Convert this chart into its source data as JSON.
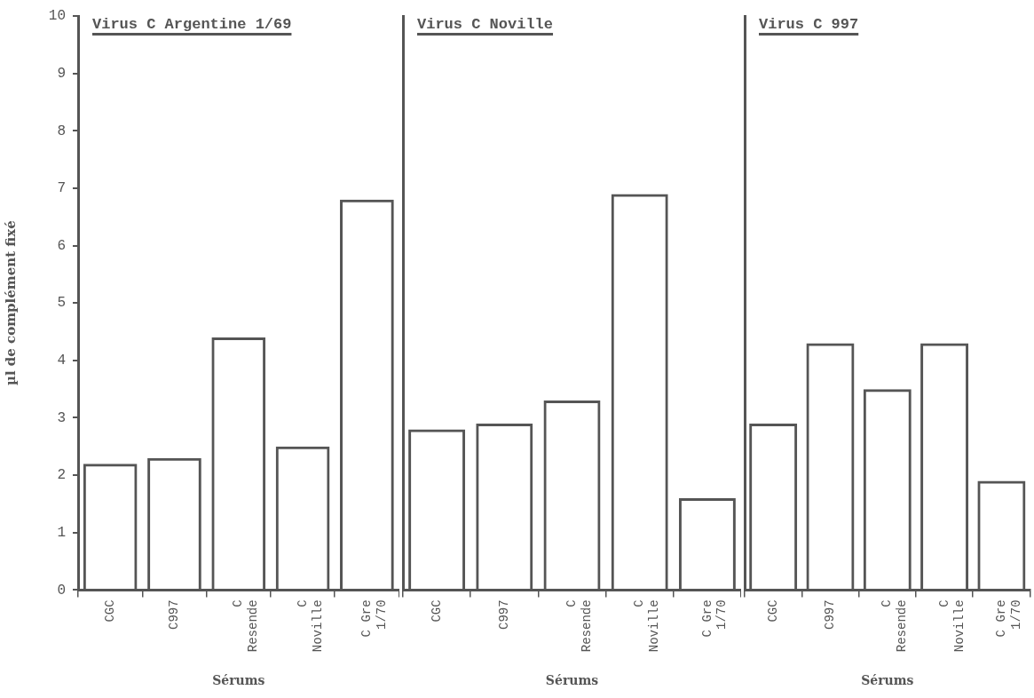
{
  "chart_data": [
    {
      "type": "bar",
      "title": "Virus C Argentine 1/69",
      "xlabel": "Sérums",
      "ylabel": "µl de complément fixé",
      "categories": [
        "CGC",
        "C997",
        "C\nResende",
        "C\nNoville",
        "C Gre\n1/70"
      ],
      "values": [
        2.2,
        2.3,
        4.4,
        2.5,
        6.8
      ],
      "color": "#555555",
      "ylim": [
        0,
        10
      ],
      "yticks": [
        0,
        1,
        2,
        3,
        4,
        5,
        6,
        7,
        8,
        9,
        10
      ]
    },
    {
      "type": "bar",
      "title": "Virus C Noville",
      "xlabel": "Sérums",
      "categories": [
        "CGC",
        "C997",
        "C\nResende",
        "C\nNoville",
        "C Gre\n1/70"
      ],
      "values": [
        2.8,
        2.9,
        3.3,
        6.9,
        1.6
      ],
      "color": "#555555",
      "ylim": [
        0,
        10
      ],
      "yticks": [
        0,
        1,
        2,
        3,
        4,
        5,
        6,
        7,
        8,
        9,
        10
      ],
      "tick_labels": "x"
    },
    {
      "type": "bar",
      "title": "Virus C 997",
      "xlabel": "Sérums",
      "categories": [
        "CGC",
        "C997",
        "C\nResende",
        "C\nNoville",
        "C Gre\n1/70"
      ],
      "values": [
        2.9,
        4.3,
        3.5,
        4.3,
        1.9
      ],
      "color": "#555555",
      "ylim": [
        0,
        10
      ],
      "yticks": [
        0,
        1,
        2,
        3,
        4,
        5,
        6,
        7,
        8,
        9,
        10
      ],
      "tick_labels": "x"
    }
  ]
}
